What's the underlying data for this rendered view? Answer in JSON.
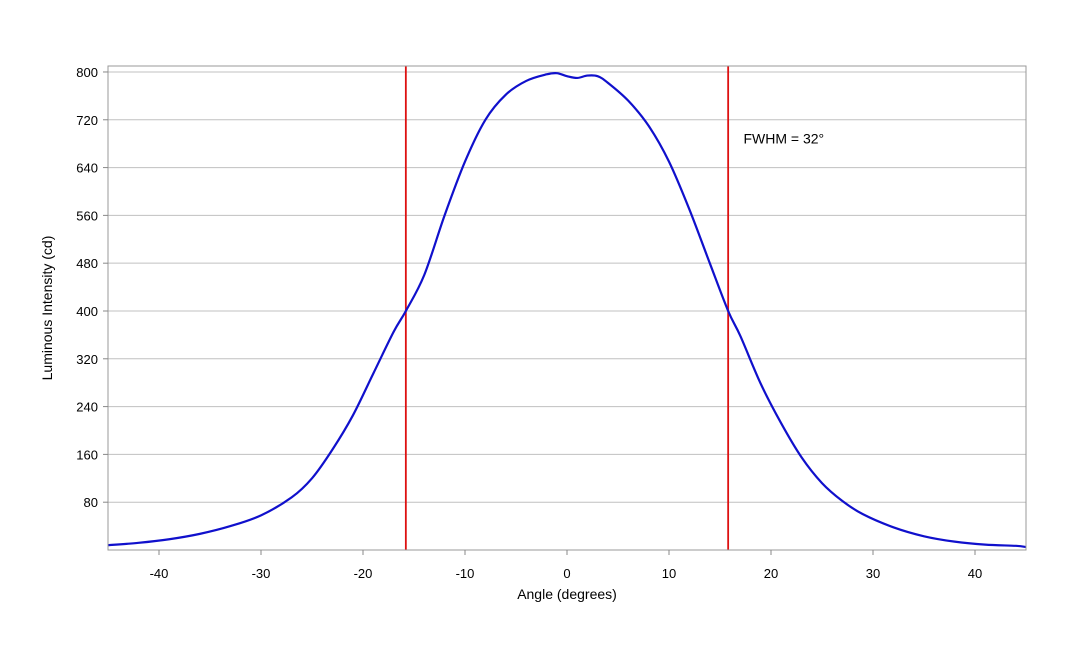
{
  "chart_data": {
    "type": "line",
    "title": "",
    "xlabel": "Angle (degrees)",
    "ylabel": "Luminous Intensity (cd)",
    "xlim": [
      -45,
      45
    ],
    "ylim": [
      0,
      810
    ],
    "x_ticks": [
      -40,
      -30,
      -20,
      -10,
      0,
      10,
      20,
      30,
      40
    ],
    "y_ticks": [
      80,
      160,
      240,
      320,
      400,
      480,
      560,
      640,
      720,
      800
    ],
    "grid": true,
    "colors": {
      "series": "#1010cc",
      "markers": "#dd1111",
      "grid": "#c0c0c0",
      "frame": "#999999"
    },
    "series": [
      {
        "name": "",
        "x": [
          -45,
          -42,
          -39,
          -36,
          -33,
          -30,
          -27,
          -25,
          -23,
          -21,
          -19,
          -17,
          -15.8,
          -14,
          -12,
          -10,
          -8,
          -6,
          -4,
          -2,
          -1,
          0,
          1,
          2,
          3,
          4,
          6,
          8,
          10,
          12,
          14,
          15.8,
          17,
          19,
          21,
          23,
          25,
          27,
          29,
          32,
          35,
          38,
          41,
          44,
          45
        ],
        "y": [
          8,
          12,
          18,
          27,
          40,
          58,
          88,
          120,
          168,
          225,
          295,
          365,
          400,
          460,
          560,
          650,
          720,
          762,
          785,
          796,
          798,
          793,
          790,
          794,
          793,
          782,
          752,
          710,
          650,
          570,
          480,
          400,
          358,
          278,
          212,
          155,
          112,
          82,
          60,
          38,
          23,
          14,
          9,
          7,
          5
        ]
      }
    ],
    "markers": [
      -15.8,
      15.8
    ],
    "annotations": [
      {
        "text": "FWHM = 32°",
        "x": 17.3,
        "y": 680
      }
    ]
  }
}
